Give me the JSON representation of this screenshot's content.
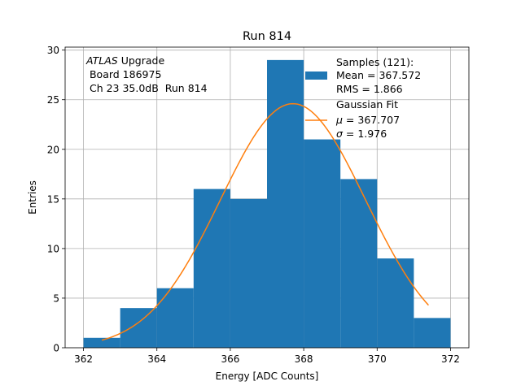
{
  "chart_data": {
    "type": "bar",
    "title": "Run 814",
    "xlabel": "Energy [ADC Counts]",
    "ylabel": "Entries",
    "xlim": [
      361.5,
      372.5
    ],
    "ylim": [
      0,
      30.3
    ],
    "grid": true,
    "x_ticks": [
      362,
      364,
      366,
      368,
      370,
      372
    ],
    "y_ticks": [
      0,
      5,
      10,
      15,
      20,
      25,
      30
    ],
    "bins": [
      {
        "x0": 362,
        "x1": 363,
        "count": 1
      },
      {
        "x0": 363,
        "x1": 364,
        "count": 4
      },
      {
        "x0": 364,
        "x1": 365,
        "count": 6
      },
      {
        "x0": 365,
        "x1": 366,
        "count": 16
      },
      {
        "x0": 366,
        "x1": 367,
        "count": 15
      },
      {
        "x0": 367,
        "x1": 368,
        "count": 29
      },
      {
        "x0": 368,
        "x1": 369,
        "count": 21
      },
      {
        "x0": 369,
        "x1": 370,
        "count": 17
      },
      {
        "x0": 370,
        "x1": 371,
        "count": 9
      },
      {
        "x0": 371,
        "x1": 372,
        "count": 3
      }
    ],
    "fit": {
      "mu": 367.707,
      "sigma": 1.976,
      "amplitude": 24.6,
      "x_start": 362.5,
      "x_end": 371.4
    },
    "colors": {
      "bars": "#1f77b4",
      "fit": "#ff7f0e",
      "grid": "#b0b0b0"
    },
    "annotation": {
      "experiment": "ATLAS",
      "experiment_suffix": " Upgrade",
      "board": " Board 186975",
      "channel": " Ch 23 35.0dB  Run 814"
    },
    "legend": {
      "placement": "top-right",
      "samples_title": "Samples (121):",
      "samples_mean": "Mean = 367.572",
      "samples_rms": "RMS = 1.866",
      "fit_title": "Gaussian Fit",
      "fit_mu_symbol": "μ",
      "fit_mu_value": " = 367.707",
      "fit_sigma_symbol": "σ",
      "fit_sigma_value": " = 1.976"
    }
  }
}
